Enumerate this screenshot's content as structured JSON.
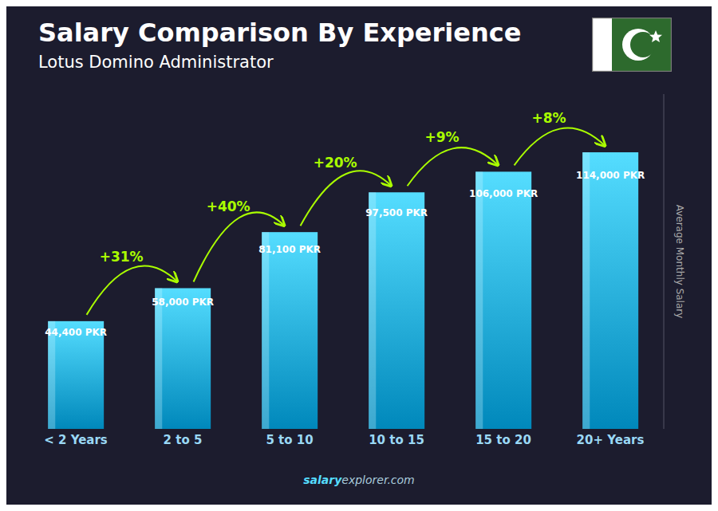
{
  "chart_data": {
    "type": "bar",
    "title": "Salary Comparison By Experience",
    "subtitle": "Lotus Domino Administrator",
    "y_label": "Average Monthly Salary",
    "categories": [
      "< 2 Years",
      "2 to 5",
      "5 to 10",
      "10 to 15",
      "15 to 20",
      "20+ Years"
    ],
    "values": [
      44400,
      58000,
      81100,
      97500,
      106000,
      114000
    ],
    "value_labels": [
      "44,400 PKR",
      "58,000 PKR",
      "81,100 PKR",
      "97,500 PKR",
      "106,000 PKR",
      "114,000 PKR"
    ],
    "data_labels": true,
    "annotations": [
      {
        "text": "+31%",
        "color": "#aaff00"
      },
      {
        "text": "+40%",
        "color": "#aaff00"
      },
      {
        "text": "+20%",
        "color": "#aaff00"
      },
      {
        "text": "+9%",
        "color": "#aaff00"
      },
      {
        "text": "+8%",
        "color": "#aaff00"
      }
    ],
    "footer": [
      "salary",
      "explorer.com"
    ],
    "color": "#0088bb",
    "ylim": [
      0,
      138000
    ],
    "tick_labels": "x",
    "grid": false
  }
}
